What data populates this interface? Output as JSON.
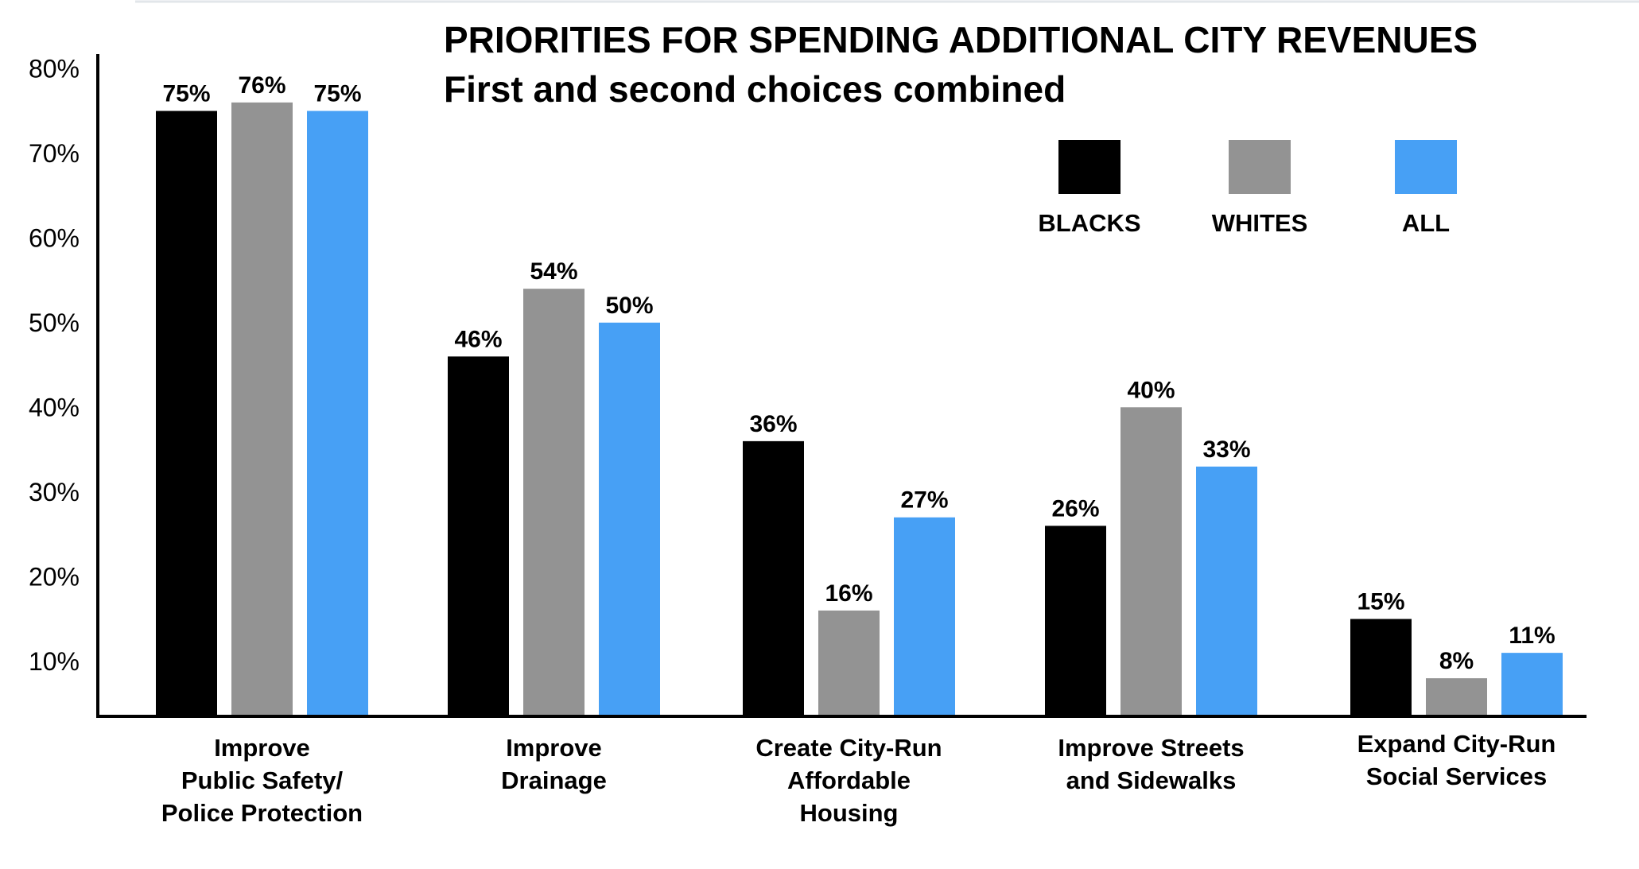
{
  "chart_data": {
    "type": "bar",
    "title": "PRIORITIES FOR SPENDING ADDITIONAL CITY REVENUES",
    "subtitle": "First and second choices combined",
    "categories": [
      [
        "Improve",
        "Public Safety/",
        "Police Protection"
      ],
      [
        "Improve",
        "Drainage"
      ],
      [
        "Create City-Run",
        "Affordable",
        "Housing"
      ],
      [
        "Improve Streets",
        "and Sidewalks"
      ],
      [
        "Expand City-Run",
        "Social Services"
      ]
    ],
    "series": [
      {
        "name": "BLACKS",
        "color": "#000000",
        "values": [
          75,
          46,
          36,
          26,
          15
        ],
        "labels": [
          "75%",
          "46%",
          "36%",
          "26%",
          "15%"
        ]
      },
      {
        "name": "WHITES",
        "color": "#939393",
        "values": [
          76,
          54,
          16,
          40,
          8
        ],
        "labels": [
          "76%",
          "54%",
          "16%",
          "40%",
          "8%"
        ]
      },
      {
        "name": "ALL",
        "color": "#47a0f5",
        "values": [
          75,
          50,
          27,
          33,
          11
        ],
        "labels": [
          "75%",
          "50%",
          "27%",
          "33%",
          "11%"
        ]
      }
    ],
    "yticks": [
      10,
      20,
      30,
      40,
      50,
      60,
      70,
      80
    ],
    "ytick_labels": [
      "10%",
      "20%",
      "30%",
      "40%",
      "50%",
      "60%",
      "70%",
      "80%"
    ],
    "ylim": [
      3.5,
      80
    ],
    "grid": false,
    "legend_position": "top-right"
  }
}
